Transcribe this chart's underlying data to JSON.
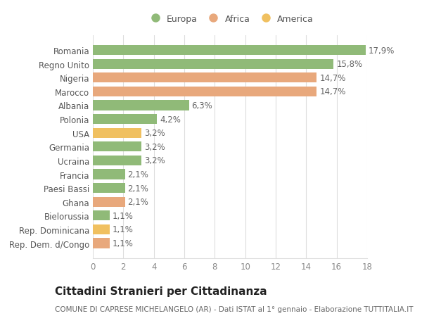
{
  "categories": [
    "Rep. Dem. d/Congo",
    "Rep. Dominicana",
    "Bielorussia",
    "Ghana",
    "Paesi Bassi",
    "Francia",
    "Ucraina",
    "Germania",
    "USA",
    "Polonia",
    "Albania",
    "Marocco",
    "Nigeria",
    "Regno Unito",
    "Romania"
  ],
  "values": [
    1.1,
    1.1,
    1.1,
    2.1,
    2.1,
    2.1,
    3.2,
    3.2,
    3.2,
    4.2,
    6.3,
    14.7,
    14.7,
    15.8,
    17.9
  ],
  "labels": [
    "1,1%",
    "1,1%",
    "1,1%",
    "2,1%",
    "2,1%",
    "2,1%",
    "3,2%",
    "3,2%",
    "3,2%",
    "4,2%",
    "6,3%",
    "14,7%",
    "14,7%",
    "15,8%",
    "17,9%"
  ],
  "colors": [
    "#E8A87C",
    "#F0C060",
    "#90BA78",
    "#E8A87C",
    "#90BA78",
    "#90BA78",
    "#90BA78",
    "#90BA78",
    "#F0C060",
    "#90BA78",
    "#90BA78",
    "#E8A87C",
    "#E8A87C",
    "#90BA78",
    "#90BA78"
  ],
  "legend_labels": [
    "Europa",
    "Africa",
    "America"
  ],
  "legend_colors": [
    "#90BA78",
    "#E8A87C",
    "#F0C060"
  ],
  "title": "Cittadini Stranieri per Cittadinanza",
  "subtitle": "COMUNE DI CAPRESE MICHELANGELO (AR) - Dati ISTAT al 1° gennaio - Elaborazione TUTTITALIA.IT",
  "xlim": [
    0,
    18
  ],
  "xticks": [
    0,
    2,
    4,
    6,
    8,
    10,
    12,
    14,
    16,
    18
  ],
  "background_color": "#ffffff",
  "grid_color": "#dddddd",
  "bar_height": 0.72,
  "title_fontsize": 11,
  "subtitle_fontsize": 7.5,
  "label_fontsize": 8.5,
  "tick_fontsize": 8.5,
  "legend_fontsize": 9
}
